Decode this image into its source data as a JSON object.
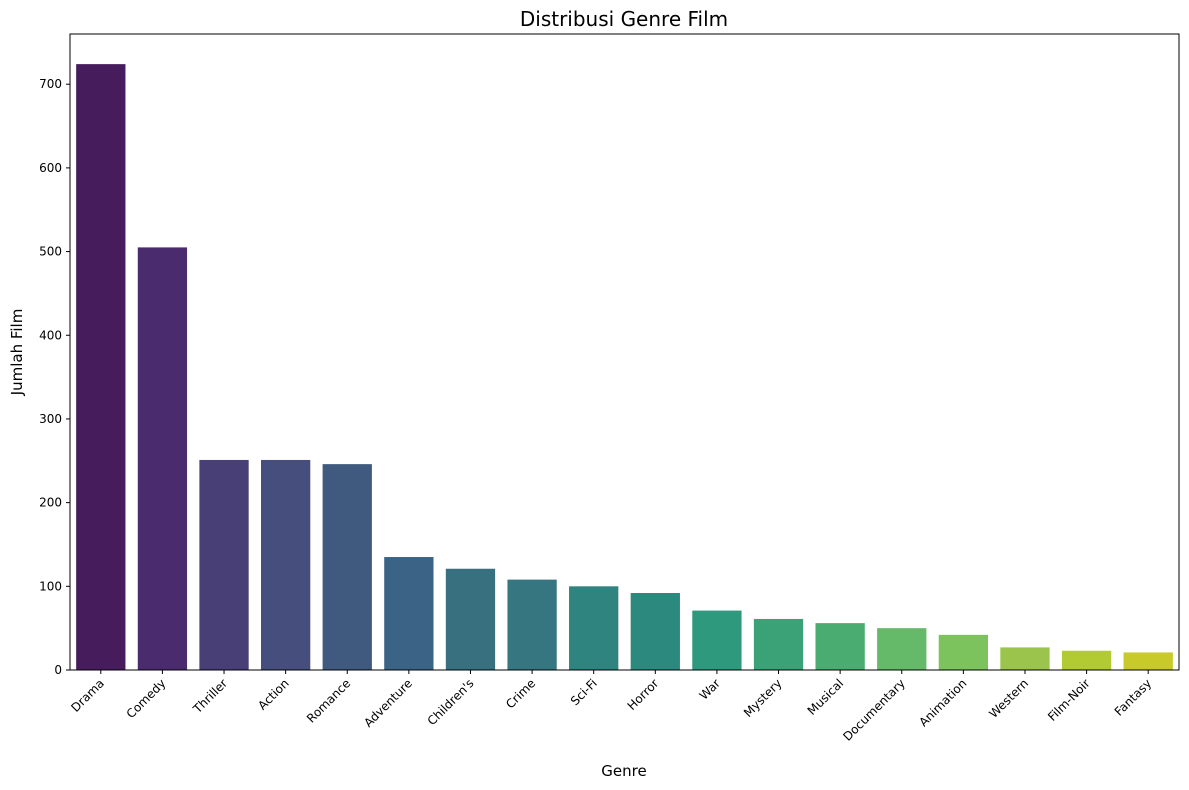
{
  "chart_data": {
    "type": "bar",
    "title": "Distribusi Genre Film",
    "xlabel": "Genre",
    "ylabel": "Jumlah Film",
    "categories": [
      "Drama",
      "Comedy",
      "Thriller",
      "Action",
      "Romance",
      "Adventure",
      "Children's",
      "Crime",
      "Sci-Fi",
      "Horror",
      "War",
      "Mystery",
      "Musical",
      "Documentary",
      "Animation",
      "Western",
      "Film-Noir",
      "Fantasy"
    ],
    "values": [
      724,
      505,
      251,
      251,
      246,
      135,
      121,
      108,
      100,
      92,
      71,
      61,
      56,
      50,
      42,
      27,
      23,
      21
    ],
    "colors": [
      "#461c5d",
      "#4a2c6e",
      "#483f77",
      "#464e7e",
      "#40597f",
      "#3b6385",
      "#38707f",
      "#357680",
      "#2f8480",
      "#2b8a7d",
      "#2e997c",
      "#3aa276",
      "#4aac71",
      "#64ba68",
      "#7cc35d",
      "#9ac44b",
      "#b2cb33",
      "#c8ca2a"
    ],
    "yticks": [
      0,
      100,
      200,
      300,
      400,
      500,
      600,
      700
    ],
    "ylim": [
      0,
      760
    ],
    "grid": false,
    "legend": "none"
  }
}
